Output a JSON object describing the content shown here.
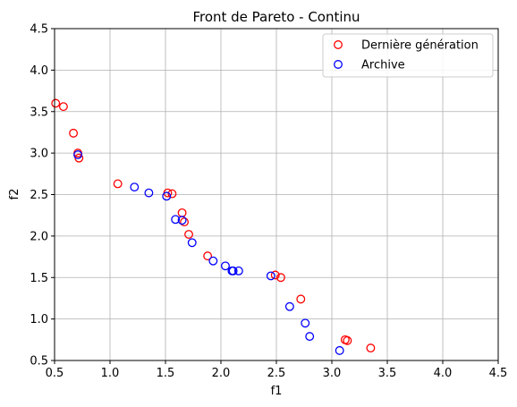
{
  "chart_data": {
    "type": "scatter",
    "title": "Front de Pareto - Continu",
    "xlabel": "f1",
    "ylabel": "f2",
    "xlim": [
      0.5,
      4.5
    ],
    "ylim": [
      0.5,
      4.5
    ],
    "xticks": [
      "0.5",
      "1.0",
      "1.5",
      "2.0",
      "2.5",
      "3.0",
      "3.5",
      "4.0",
      "4.5"
    ],
    "yticks": [
      "0.5",
      "1.0",
      "1.5",
      "2.0",
      "2.5",
      "3.0",
      "3.5",
      "4.0",
      "4.5"
    ],
    "grid": true,
    "legend_position": "top-right",
    "series": [
      {
        "name": "Dernière génération",
        "color": "#ff0000",
        "marker": "open-circle",
        "points": [
          [
            0.51,
            3.6
          ],
          [
            0.58,
            3.56
          ],
          [
            0.67,
            3.24
          ],
          [
            0.71,
            3.0
          ],
          [
            0.72,
            2.94
          ],
          [
            1.07,
            2.63
          ],
          [
            1.52,
            2.52
          ],
          [
            1.56,
            2.51
          ],
          [
            1.65,
            2.28
          ],
          [
            1.67,
            2.17
          ],
          [
            1.71,
            2.02
          ],
          [
            1.88,
            1.76
          ],
          [
            2.49,
            1.53
          ],
          [
            2.54,
            1.5
          ],
          [
            2.72,
            1.24
          ],
          [
            3.12,
            0.75
          ],
          [
            3.14,
            0.74
          ],
          [
            3.35,
            0.65
          ]
        ]
      },
      {
        "name": "Archive",
        "color": "#0000ff",
        "marker": "open-circle",
        "points": [
          [
            0.71,
            2.98
          ],
          [
            1.22,
            2.59
          ],
          [
            1.35,
            2.52
          ],
          [
            1.51,
            2.48
          ],
          [
            1.59,
            2.2
          ],
          [
            1.65,
            2.19
          ],
          [
            1.74,
            1.92
          ],
          [
            1.93,
            1.7
          ],
          [
            2.04,
            1.64
          ],
          [
            2.1,
            1.58
          ],
          [
            2.11,
            1.58
          ],
          [
            2.16,
            1.58
          ],
          [
            2.45,
            1.52
          ],
          [
            2.62,
            1.15
          ],
          [
            2.76,
            0.95
          ],
          [
            2.8,
            0.79
          ],
          [
            3.07,
            0.62
          ]
        ]
      }
    ]
  }
}
